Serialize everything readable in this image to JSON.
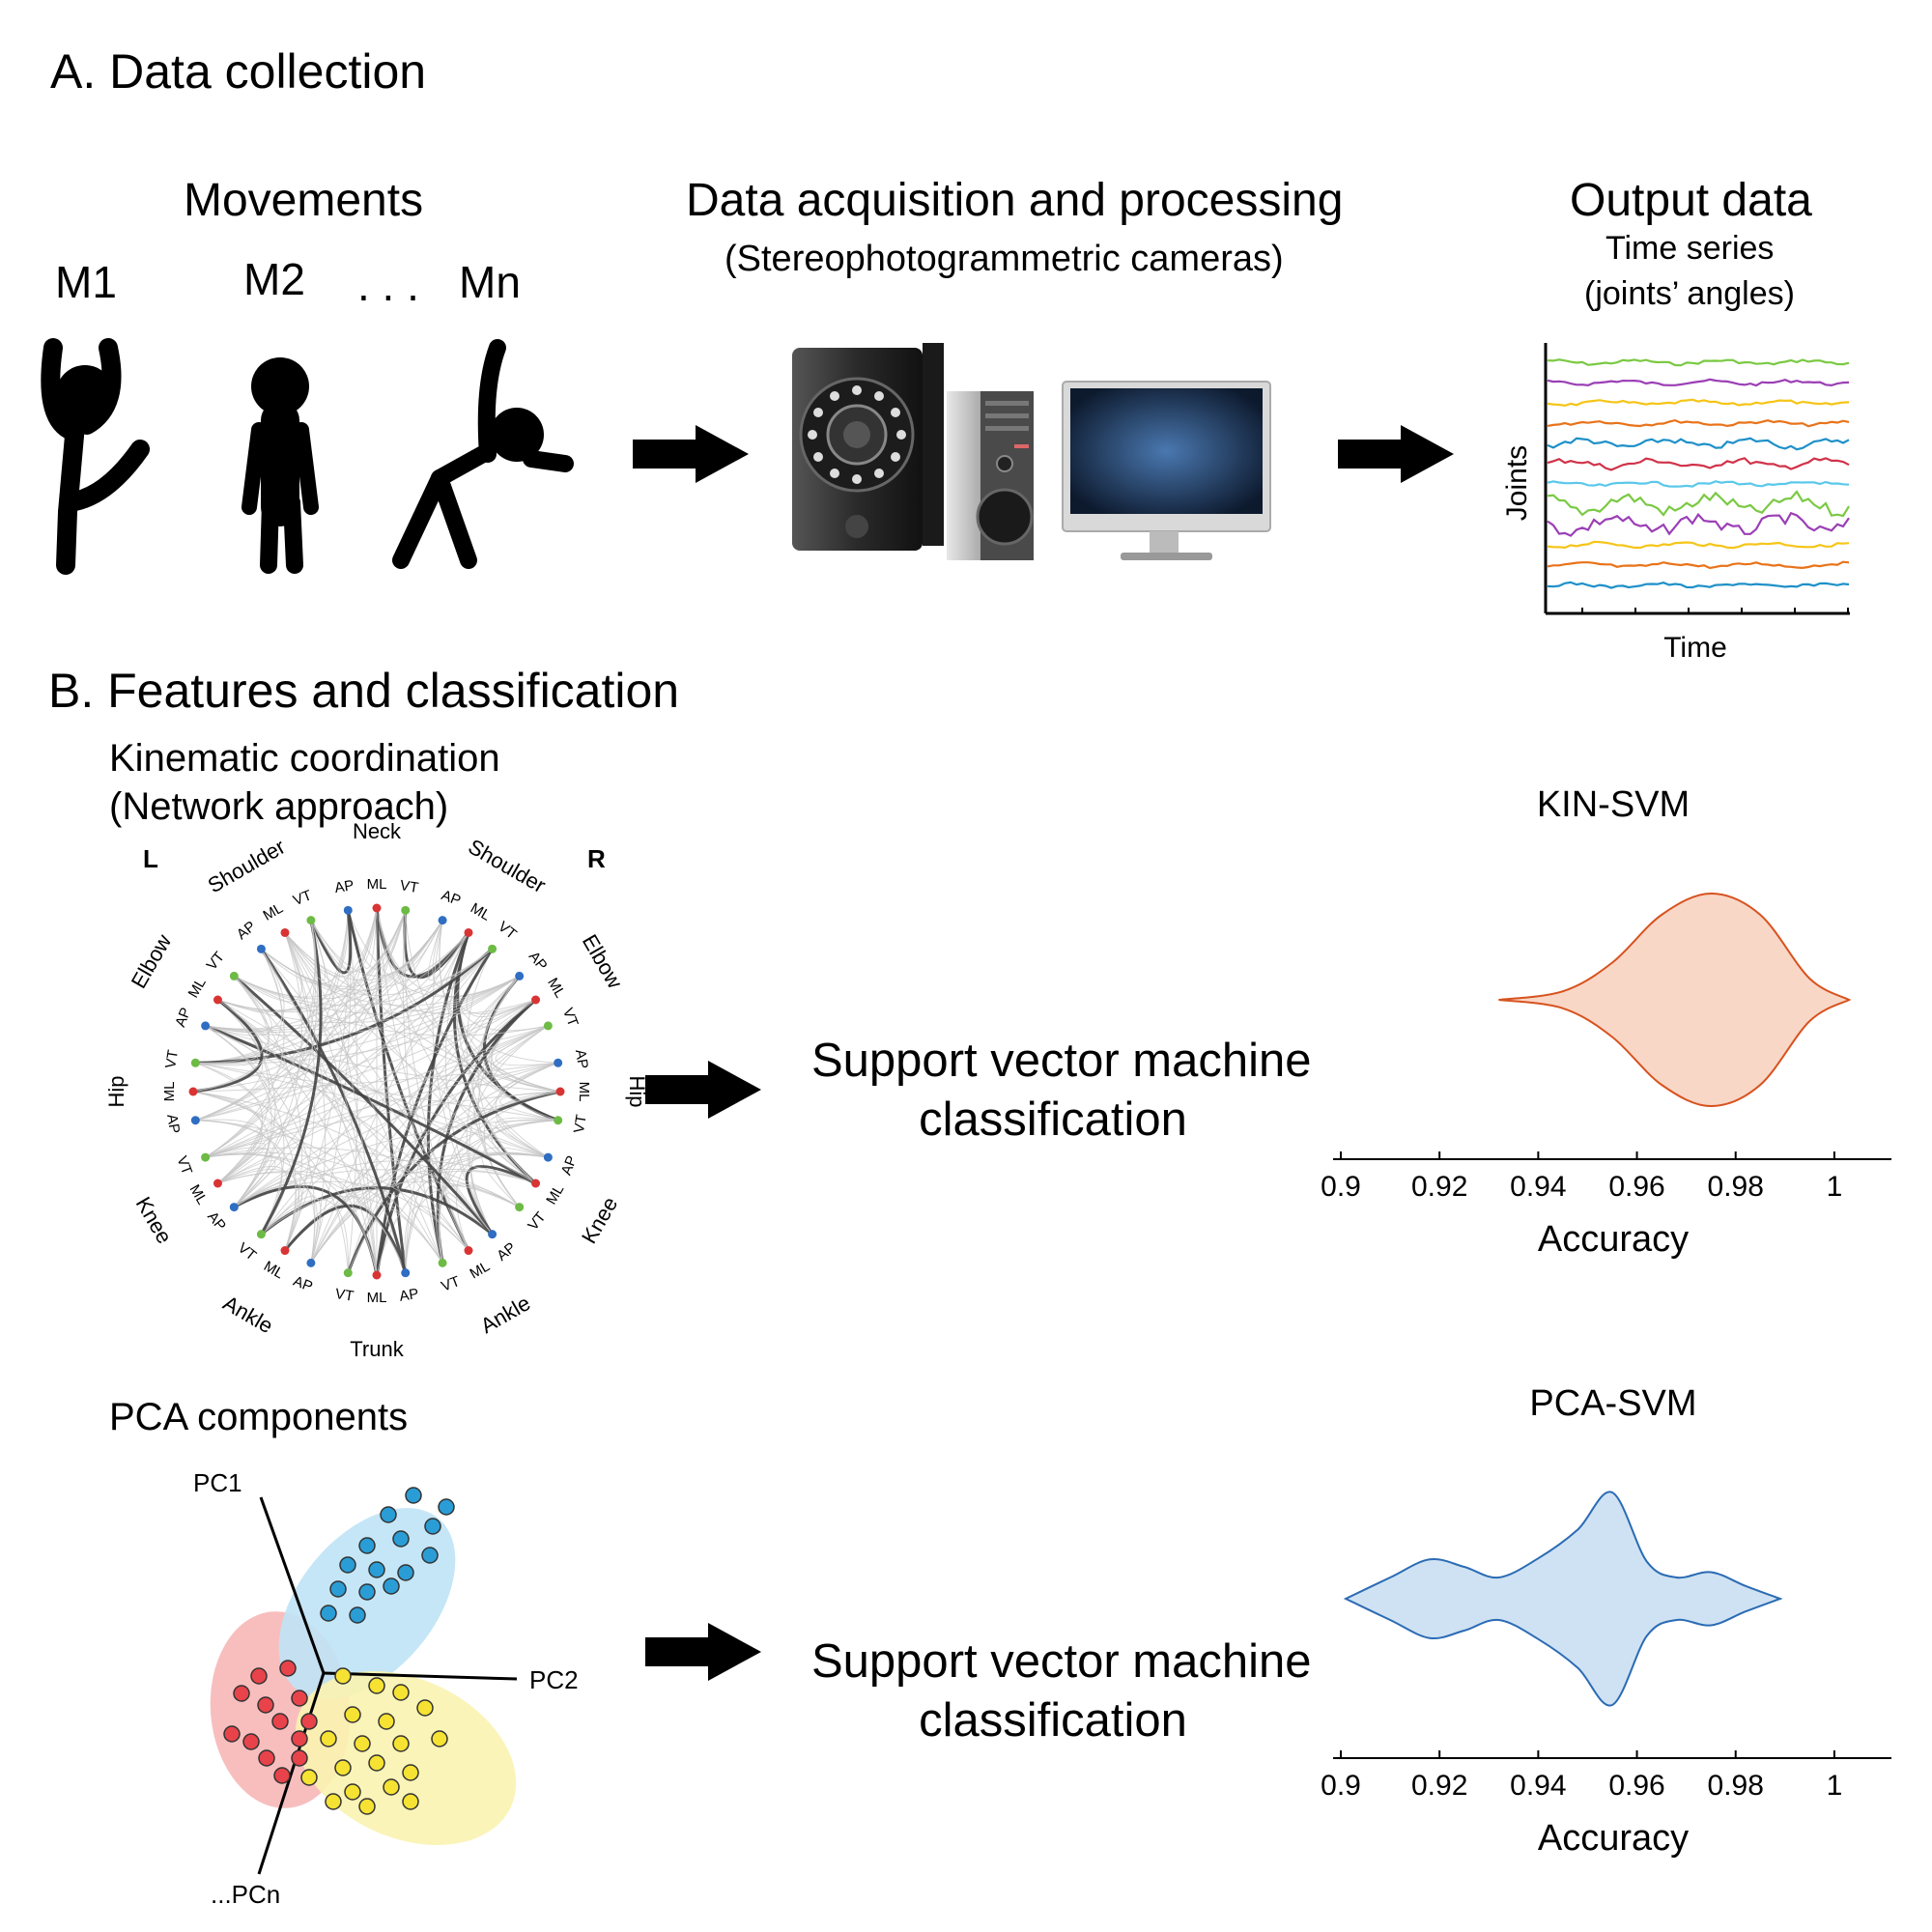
{
  "section_a": {
    "title": "A. Data collection",
    "movements": {
      "heading": "Movements",
      "labels": [
        "M1",
        "M2",
        "Mn"
      ],
      "ellipsis": ". . ."
    },
    "acquisition": {
      "heading": "Data acquisition and processing",
      "subheading": "(Stereophotogrammetric cameras)"
    },
    "output": {
      "heading": "Output data",
      "line1": "Time series",
      "line2": "(joints’ angles)",
      "ylabel": "Joints",
      "xlabel": "Time"
    },
    "trace_colors": [
      "#7ac943",
      "#9b3fb5",
      "#f5c518",
      "#e8731a",
      "#1e90c8",
      "#d0334a",
      "#5bc8ea",
      "#7ac943",
      "#9b3fb5",
      "#f5c518",
      "#e8731a",
      "#1e90c8"
    ]
  },
  "section_b": {
    "title": "B. Features and classification",
    "kinematic": {
      "line1": "Kinematic coordination",
      "line2": "(Network approach)"
    },
    "network": {
      "side_left": "L",
      "side_right": "R",
      "groups": [
        "Neck",
        "Shoulder",
        "Elbow",
        "Hip",
        "Knee",
        "Ankle",
        "Trunk",
        "Ankle",
        "Knee",
        "Hip",
        "Elbow",
        "Shoulder"
      ],
      "axes": [
        "AP",
        "ML",
        "VT"
      ],
      "node_colors": {
        "AP": "#2f6ec2",
        "ML": "#d93434",
        "VT": "#6dbb45"
      }
    },
    "pca": {
      "label": "PCA components",
      "axes": [
        "PC1",
        "PC2",
        "...PCn"
      ]
    },
    "svm_label_1": "Support vector machine",
    "svm_label_2": "classification"
  },
  "chart_data": [
    {
      "type": "violin",
      "title": "KIN-SVM",
      "xlabel": "Accuracy",
      "xlim": [
        0.9,
        1.01
      ],
      "ticks": [
        "0.9",
        "0.92",
        "0.94",
        "0.96",
        "0.98",
        "1"
      ],
      "tick_values": [
        0.9,
        0.92,
        0.94,
        0.96,
        0.98,
        1.0
      ],
      "range": [
        0.932,
        1.003
      ],
      "peak": 0.975,
      "density": [
        [
          0.932,
          0.0
        ],
        [
          0.945,
          0.08
        ],
        [
          0.955,
          0.35
        ],
        [
          0.965,
          0.8
        ],
        [
          0.975,
          1.0
        ],
        [
          0.985,
          0.8
        ],
        [
          0.995,
          0.2
        ],
        [
          1.003,
          0.0
        ]
      ],
      "fill": "#f8d7c7",
      "stroke": "#d8521e"
    },
    {
      "type": "violin",
      "title": "PCA-SVM",
      "xlabel": "Accuracy",
      "xlim": [
        0.9,
        1.01
      ],
      "ticks": [
        "0.9",
        "0.92",
        "0.94",
        "0.96",
        "0.98",
        "1"
      ],
      "tick_values": [
        0.9,
        0.92,
        0.94,
        0.96,
        0.98,
        1.0
      ],
      "range": [
        0.901,
        0.989
      ],
      "peak": 0.955,
      "density": [
        [
          0.901,
          0.0
        ],
        [
          0.91,
          0.2
        ],
        [
          0.918,
          0.37
        ],
        [
          0.925,
          0.3
        ],
        [
          0.932,
          0.2
        ],
        [
          0.94,
          0.38
        ],
        [
          0.948,
          0.65
        ],
        [
          0.955,
          1.0
        ],
        [
          0.962,
          0.35
        ],
        [
          0.968,
          0.2
        ],
        [
          0.975,
          0.25
        ],
        [
          0.982,
          0.12
        ],
        [
          0.989,
          0.0
        ]
      ],
      "fill": "#cfe2f3",
      "stroke": "#2b6bb4"
    }
  ]
}
